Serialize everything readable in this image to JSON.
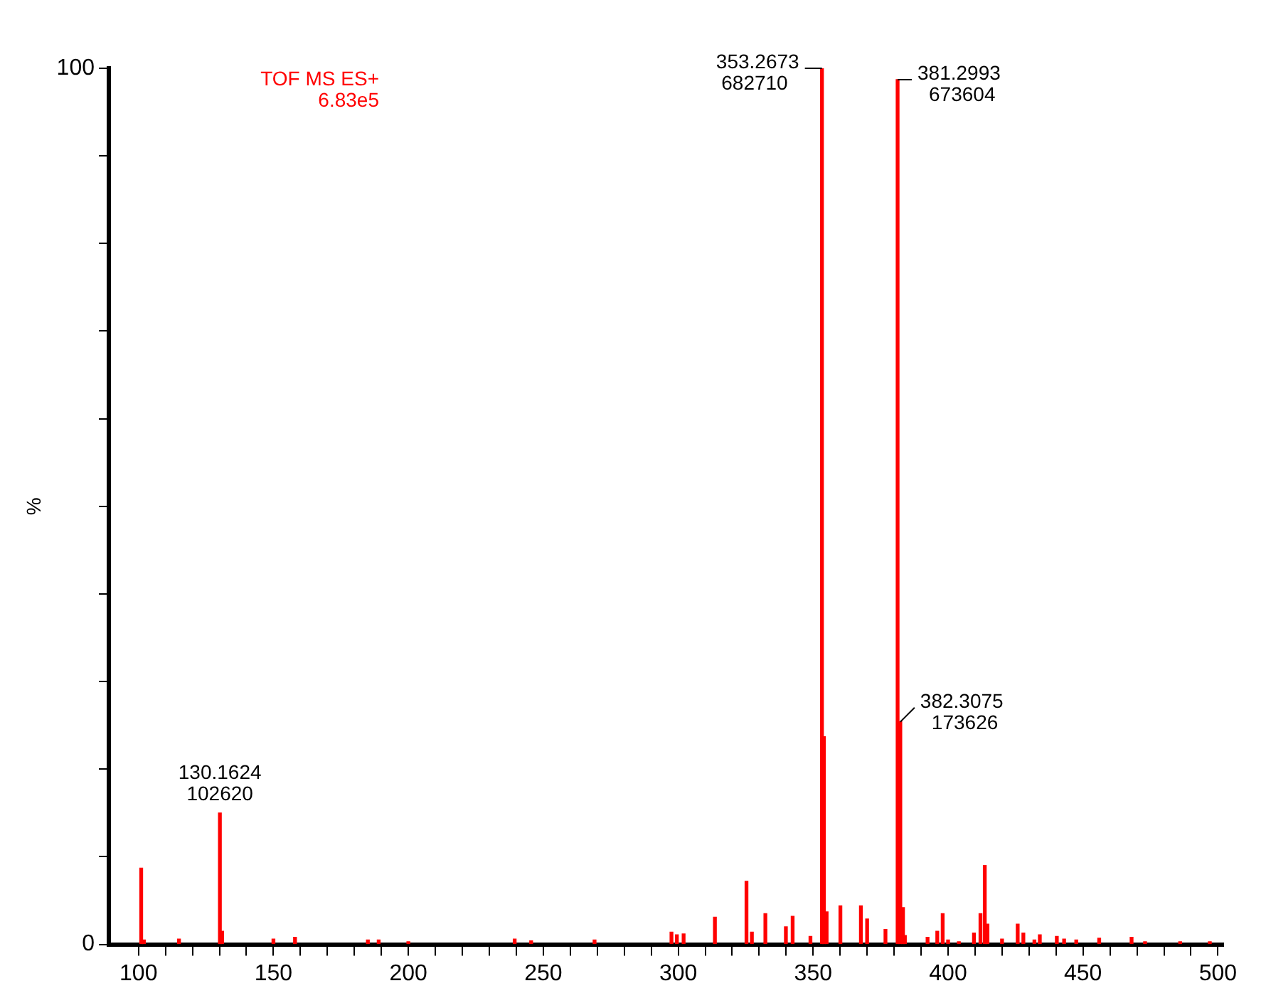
{
  "chart_data": {
    "type": "bar",
    "ylabel": "%",
    "annotations": [
      "TOF MS ES+\n6.83e5",
      {
        "text": "353.2673\n682710",
        "x": 353.2673,
        "y": 100
      },
      {
        "text": "381.2993\n673604",
        "x": 381.2993,
        "y": 98.7
      },
      {
        "text": "382.3075\n173626",
        "x": 382.3075,
        "y": 25.4
      },
      {
        "text": "130.1624\n102620",
        "x": 130.1624,
        "y": 15
      }
    ],
    "x": [
      101,
      102,
      115,
      130.1624,
      131,
      150,
      158,
      185,
      189,
      200,
      239.4,
      245.5,
      269,
      297.5,
      299.5,
      302,
      313.6,
      325.3,
      327.3,
      332.3,
      339.9,
      342.4,
      349,
      353.2673,
      354,
      355,
      360.1,
      367.7,
      370,
      376.8,
      381.2993,
      382.3075,
      383.3,
      384,
      392.4,
      396,
      398,
      400,
      404,
      409.6,
      412,
      413.6,
      414.6,
      420,
      425.8,
      427.9,
      432,
      434,
      440.3,
      443,
      447.5,
      456,
      468,
      473,
      486,
      497
    ],
    "series": [
      {
        "color": "#ff0000",
        "values": [
          8.7,
          0.5,
          0.6,
          15,
          1.5,
          0.6,
          0.8,
          0.5,
          0.5,
          0.3,
          0.6,
          0.4,
          0.5,
          1.4,
          1.1,
          1.2,
          3.1,
          7.2,
          1.4,
          3.5,
          2,
          3.2,
          0.9,
          100,
          23.7,
          3.7,
          4.4,
          4.4,
          2.9,
          1.7,
          98.7,
          25.4,
          4.2,
          1,
          0.8,
          1.5,
          3.5,
          0.5,
          0.3,
          1.3,
          3.5,
          9,
          2.3,
          0.6,
          2.3,
          1.3,
          0.5,
          1.1,
          0.9,
          0.6,
          0.5,
          0.7,
          0.8,
          0.3,
          0.3,
          0.3
        ]
      }
    ],
    "xlim": [
      89,
      502
    ],
    "ylim": [
      0,
      100
    ],
    "xticks": [
      100,
      {
        "value": 110,
        "label": null
      },
      {
        "value": 120,
        "label": null
      },
      {
        "value": 130,
        "label": null
      },
      {
        "value": 140,
        "label": null
      },
      150,
      {
        "value": 160,
        "label": null
      },
      {
        "value": 170,
        "label": null
      },
      {
        "value": 180,
        "label": null
      },
      {
        "value": 190,
        "label": null
      },
      200,
      {
        "value": 210,
        "label": null
      },
      {
        "value": 220,
        "label": null
      },
      {
        "value": 230,
        "label": null
      },
      {
        "value": 240,
        "label": null
      },
      250,
      {
        "value": 260,
        "label": null
      },
      {
        "value": 270,
        "label": null
      },
      {
        "value": 280,
        "label": null
      },
      {
        "value": 290,
        "label": null
      },
      300,
      {
        "value": 310,
        "label": null
      },
      {
        "value": 320,
        "label": null
      },
      {
        "value": 330,
        "label": null
      },
      {
        "value": 340,
        "label": null
      },
      350,
      {
        "value": 360,
        "label": null
      },
      {
        "value": 370,
        "label": null
      },
      {
        "value": 380,
        "label": null
      },
      {
        "value": 390,
        "label": null
      },
      400,
      {
        "value": 410,
        "label": null
      },
      {
        "value": 420,
        "label": null
      },
      {
        "value": 430,
        "label": null
      },
      {
        "value": 440,
        "label": null
      },
      450,
      {
        "value": 460,
        "label": null
      },
      {
        "value": 470,
        "label": null
      },
      {
        "value": 480,
        "label": null
      },
      {
        "value": 490,
        "label": null
      },
      500
    ],
    "yticks": [
      0,
      {
        "value": 10,
        "label": null
      },
      {
        "value": 20,
        "label": null
      },
      {
        "value": 30,
        "label": null
      },
      {
        "value": 40,
        "label": null
      },
      {
        "value": 50,
        "label": null
      },
      {
        "value": 60,
        "label": null
      },
      {
        "value": 70,
        "label": null
      },
      {
        "value": 80,
        "label": null
      },
      {
        "value": 90,
        "label": null
      },
      100
    ],
    "grid": false,
    "legend": false
  }
}
